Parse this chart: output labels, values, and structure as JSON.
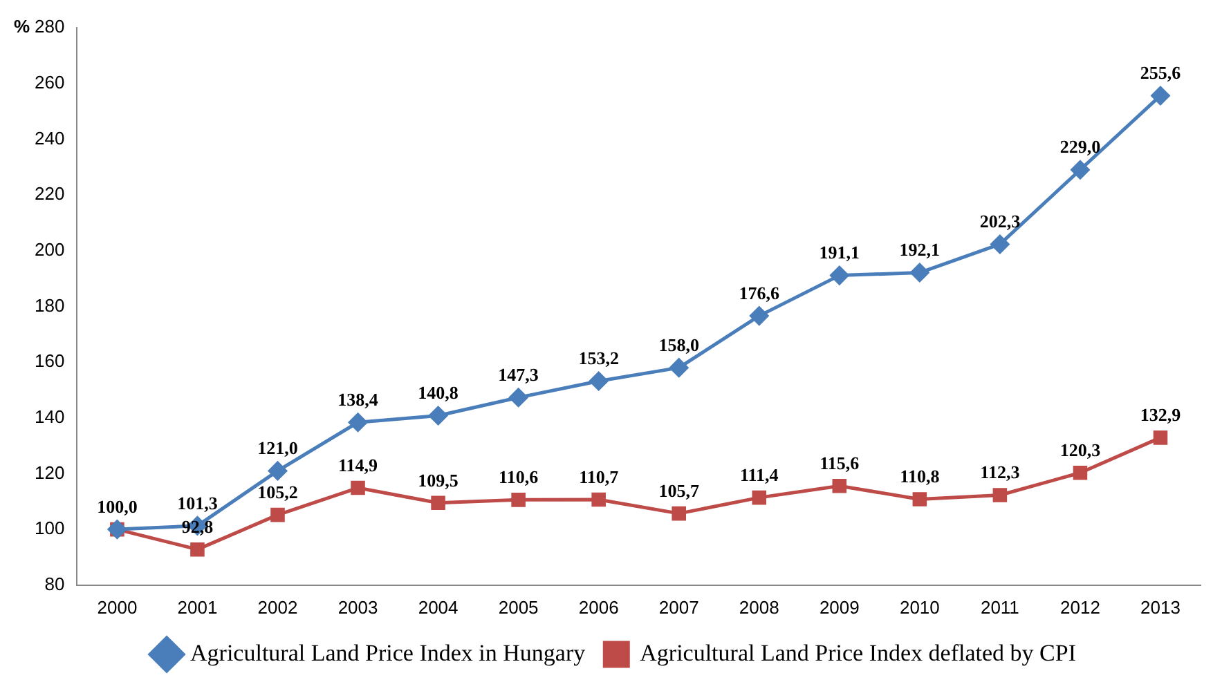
{
  "chart_data": {
    "type": "line",
    "ylabel": "%",
    "categories": [
      "2000",
      "2001",
      "2002",
      "2003",
      "2004",
      "2005",
      "2006",
      "2007",
      "2008",
      "2009",
      "2010",
      "2011",
      "2012",
      "2013"
    ],
    "series": [
      {
        "name": "Agricultural Land Price Index in Hungary",
        "color": "#4a7ebb",
        "marker": "diamond",
        "values": [
          100.0,
          101.3,
          121.0,
          138.4,
          140.8,
          147.3,
          153.2,
          158.0,
          176.6,
          191.1,
          192.1,
          202.3,
          229.0,
          255.6
        ],
        "value_labels": [
          "100,0",
          "101,3",
          "121,0",
          "138,4",
          "140,8",
          "147,3",
          "153,2",
          "158,0",
          "176,6",
          "191,1",
          "192,1",
          "202,3",
          "229,0",
          "255,6"
        ]
      },
      {
        "name": "Agricultural Land Price Index deflated by CPI",
        "color": "#be4b48",
        "marker": "square",
        "values": [
          100.0,
          92.8,
          105.2,
          114.9,
          109.5,
          110.6,
          110.7,
          105.7,
          111.4,
          115.6,
          110.8,
          112.3,
          120.3,
          132.9
        ],
        "value_labels": [
          null,
          "92,8",
          "105,2",
          "114,9",
          "109,5",
          "110,6",
          "110,7",
          "105,7",
          "111,4",
          "115,6",
          "110,8",
          "112,3",
          "120,3",
          "132,9"
        ]
      }
    ],
    "ylim": [
      80,
      280
    ],
    "yticks": [
      80,
      100,
      120,
      140,
      160,
      180,
      200,
      220,
      240,
      260,
      280
    ],
    "grid": false,
    "legend": "bottom",
    "line_style": "solid"
  }
}
